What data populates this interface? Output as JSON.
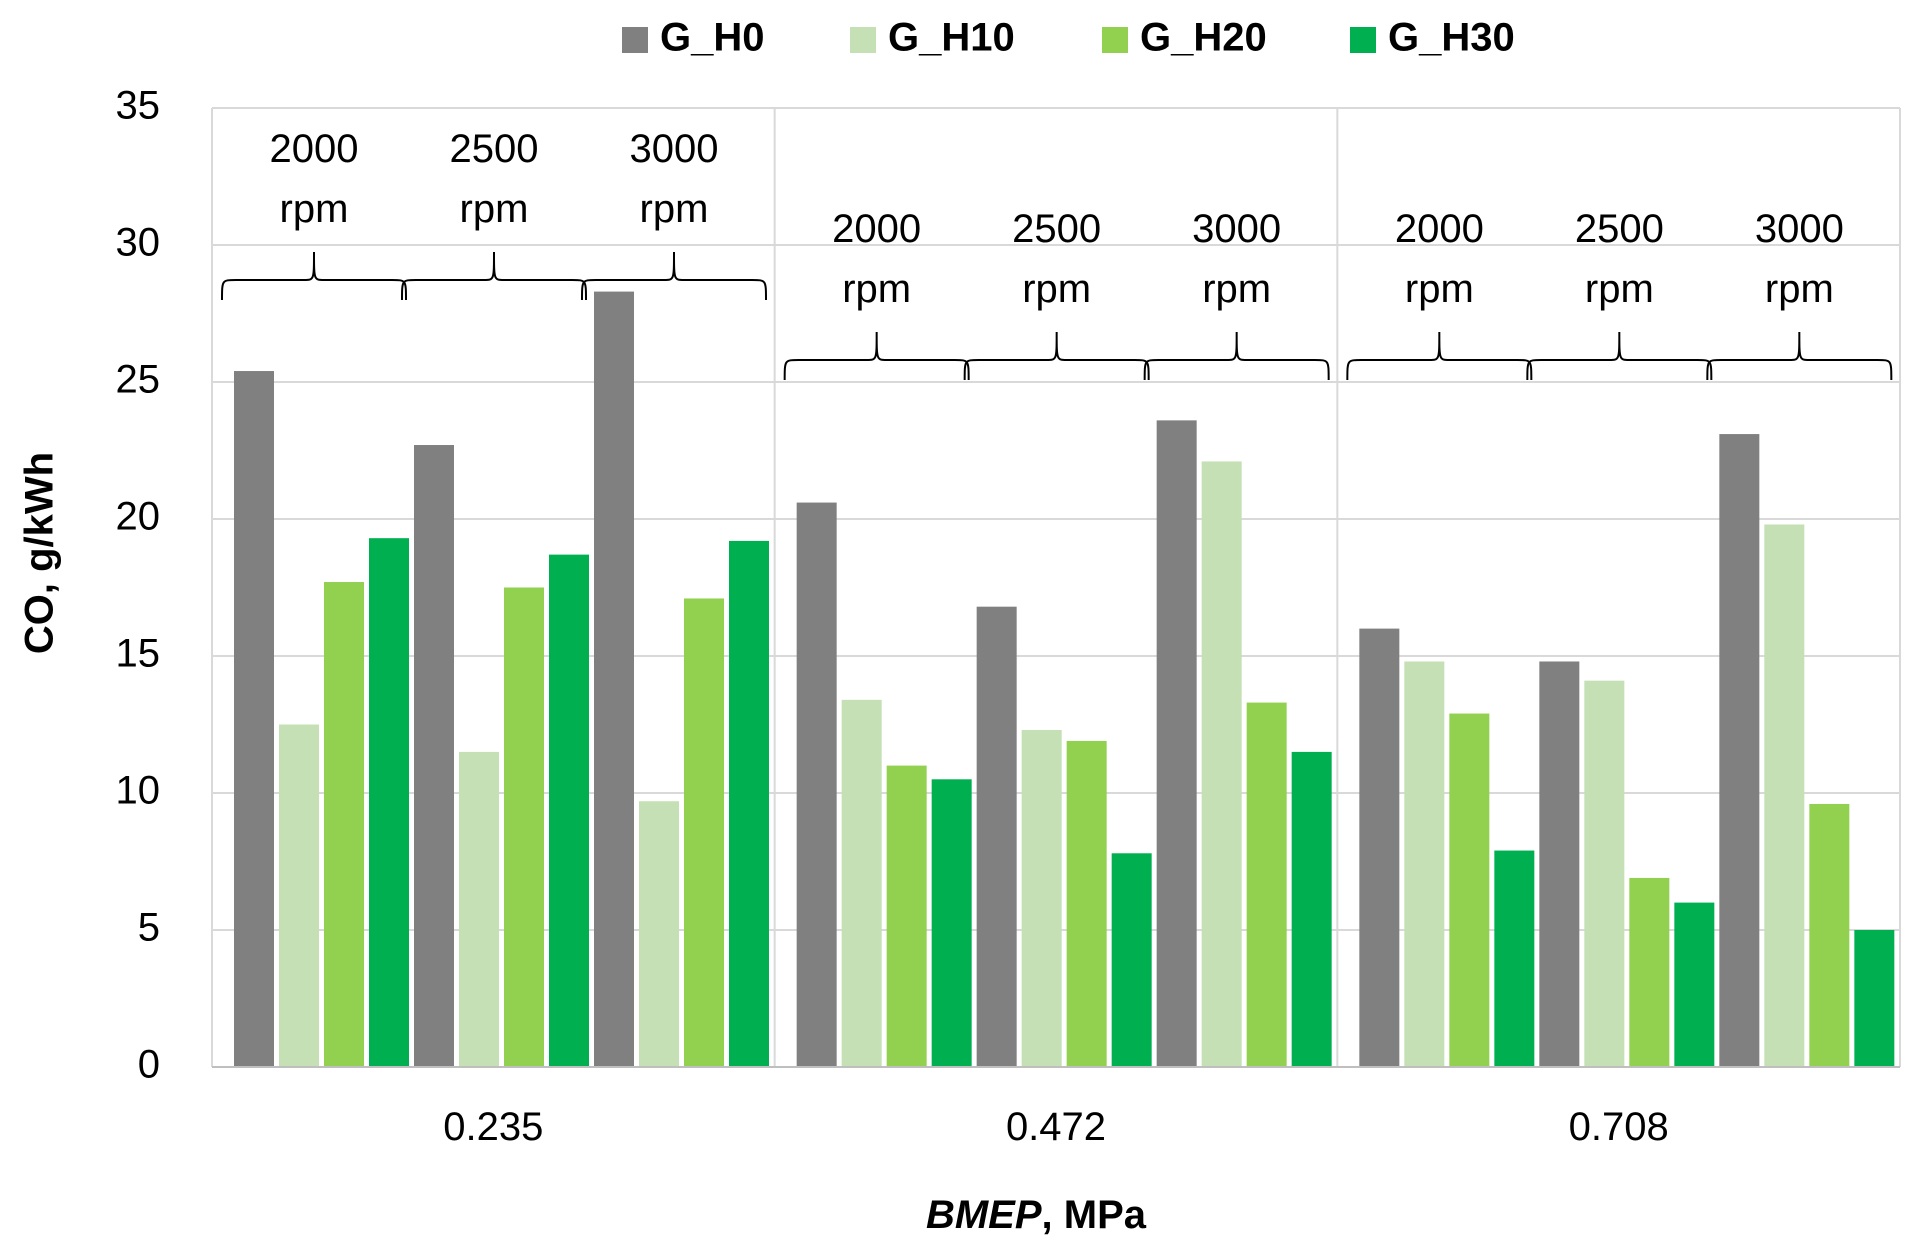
{
  "chart_data": {
    "type": "bar",
    "title": "",
    "ylabel": "CO, g/kWh",
    "xlabel_italic": "BMEP",
    "xlabel_rest": ", MPa",
    "ylim": [
      0,
      35
    ],
    "yticks": [
      0,
      5,
      10,
      15,
      20,
      25,
      30,
      35
    ],
    "grid": true,
    "legend_position": "top",
    "groups": [
      "0.235",
      "0.472",
      "0.708"
    ],
    "subgroups": [
      {
        "speed": "2000",
        "unit": "rpm"
      },
      {
        "speed": "2500",
        "unit": "rpm"
      },
      {
        "speed": "3000",
        "unit": "rpm"
      }
    ],
    "series": [
      {
        "name": "G_H0",
        "color": "#808080",
        "values": [
          [
            25.4,
            22.7,
            28.3
          ],
          [
            20.6,
            16.8,
            23.6
          ],
          [
            16.0,
            14.8,
            23.1
          ]
        ]
      },
      {
        "name": "G_H10",
        "color": "#c5e0b4",
        "values": [
          [
            12.5,
            11.5,
            9.7
          ],
          [
            13.4,
            12.3,
            22.1
          ],
          [
            14.8,
            14.1,
            19.8
          ]
        ]
      },
      {
        "name": "G_H20",
        "color": "#92d050",
        "values": [
          [
            17.7,
            17.5,
            17.1
          ],
          [
            11.0,
            11.9,
            13.3
          ],
          [
            12.9,
            6.9,
            9.6
          ]
        ]
      },
      {
        "name": "G_H30",
        "color": "#00b050",
        "values": [
          [
            19.3,
            18.7,
            19.2
          ],
          [
            10.5,
            7.8,
            11.5
          ],
          [
            7.9,
            6.0,
            5.0
          ]
        ]
      }
    ]
  }
}
